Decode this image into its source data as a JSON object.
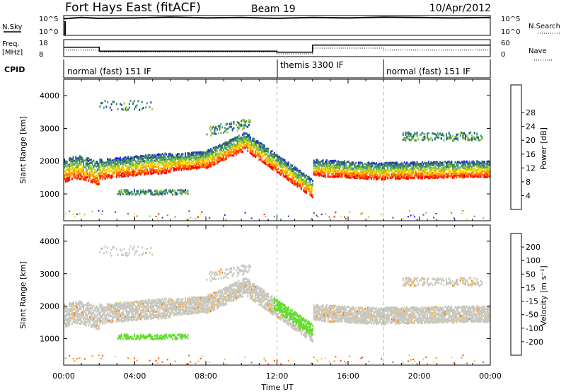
{
  "header": {
    "radar": "Fort Hays East (fitACF)",
    "beam": "Beam 19",
    "date": "10/Apr/2012"
  },
  "nsky_panel": {
    "label": "N.Sky",
    "left_ticks": [
      "10^5",
      "10^0"
    ],
    "right_ticks": [
      "10^5",
      "10^0"
    ],
    "right_label": "N.Search"
  },
  "freq_panel": {
    "label_top": "Freq.",
    "label_unit": "[MHz]",
    "left_ticks": [
      "18",
      "8"
    ],
    "right_ticks": [
      "60",
      "0"
    ],
    "right_label": "Nave"
  },
  "cpid_panel": {
    "label": "CPID",
    "modes": [
      {
        "name": "normal (fast) 151 IF",
        "start": 0,
        "end": 12
      },
      {
        "name": "themis 3300 IF",
        "start": 12,
        "end": 18
      },
      {
        "name": "normal (fast) 151 IF",
        "start": 18,
        "end": 24
      }
    ]
  },
  "time_axis": {
    "label": "Time UT",
    "ticks": [
      "00:00",
      "04:00",
      "08:00",
      "12:00",
      "16:00",
      "20:00",
      "00:00"
    ]
  },
  "colors": {
    "power": [
      "#1a1aff",
      "#2244aa",
      "#3a7a5a",
      "#4aa070",
      "#9acd32",
      "#ffd700",
      "#ff9900",
      "#ff5500",
      "#ff0000"
    ],
    "velocity": [
      "#2020c0",
      "#2a4ab0",
      "#2f8f3f",
      "#66dd33",
      "#c8c8c0",
      "#ffbb33",
      "#ff8800",
      "#ff4400",
      "#ee0000"
    ]
  },
  "chart_data": [
    {
      "type": "line",
      "title": "N.Sky / N.Search",
      "x_range": [
        0,
        24
      ],
      "series": [
        {
          "x": [
            0,
            1,
            2,
            4,
            6,
            8,
            10,
            12,
            14,
            16,
            18,
            20,
            22,
            24
          ],
          "y": [
            4.2,
            4.5,
            4.3,
            4.4,
            4.6,
            4.4,
            4.5,
            4.3,
            4.5,
            4.4,
            4.6,
            4.5,
            4.4,
            4.5
          ]
        }
      ]
    },
    {
      "type": "line",
      "title": "Freq / Nave",
      "x_range": [
        0,
        24
      ],
      "y_left_range": [
        8,
        18
      ],
      "y_right_range": [
        0,
        60
      ],
      "series": [
        {
          "x": [
            0,
            2,
            2,
            12,
            12,
            14,
            14,
            24
          ],
          "y": [
            13.5,
            13.5,
            11.2,
            11.2,
            10.6,
            10.6,
            14.8,
            14.8
          ]
        },
        {
          "x": [
            0,
            2,
            2,
            12,
            12,
            14,
            14,
            18,
            18,
            24
          ],
          "y": [
            23,
            23,
            16,
            16,
            10,
            10,
            30,
            30,
            23,
            23
          ]
        }
      ]
    },
    {
      "type": "heatmap",
      "ylabel": "Slant Range [km]",
      "xlabel": "Time UT",
      "x_ticks": [
        "00:00",
        "04:00",
        "08:00",
        "12:00",
        "16:00",
        "20:00",
        "00:00"
      ],
      "y_ticks": [
        1000,
        2000,
        3000,
        4000
      ],
      "x_range": [
        0,
        24
      ],
      "y_range": [
        180,
        4500
      ],
      "colorbar_label": "Power [dB]",
      "colorbar_ticks": [
        "4",
        "8",
        "12",
        "16",
        "20",
        "24",
        "28"
      ]
    },
    {
      "type": "heatmap",
      "ylabel": "Slant Range [km]",
      "xlabel": "Time UT",
      "x_ticks": [
        "00:00",
        "04:00",
        "08:00",
        "12:00",
        "16:00",
        "20:00",
        "00:00"
      ],
      "y_ticks": [
        1000,
        2000,
        3000,
        4000
      ],
      "x_range": [
        0,
        24
      ],
      "y_range": [
        180,
        4500
      ],
      "colorbar_label": "Velocity [m s⁻¹]",
      "colorbar_ticks": [
        "200",
        "100",
        "50",
        "15",
        "-15",
        "-50",
        "-100",
        "-200"
      ]
    }
  ]
}
